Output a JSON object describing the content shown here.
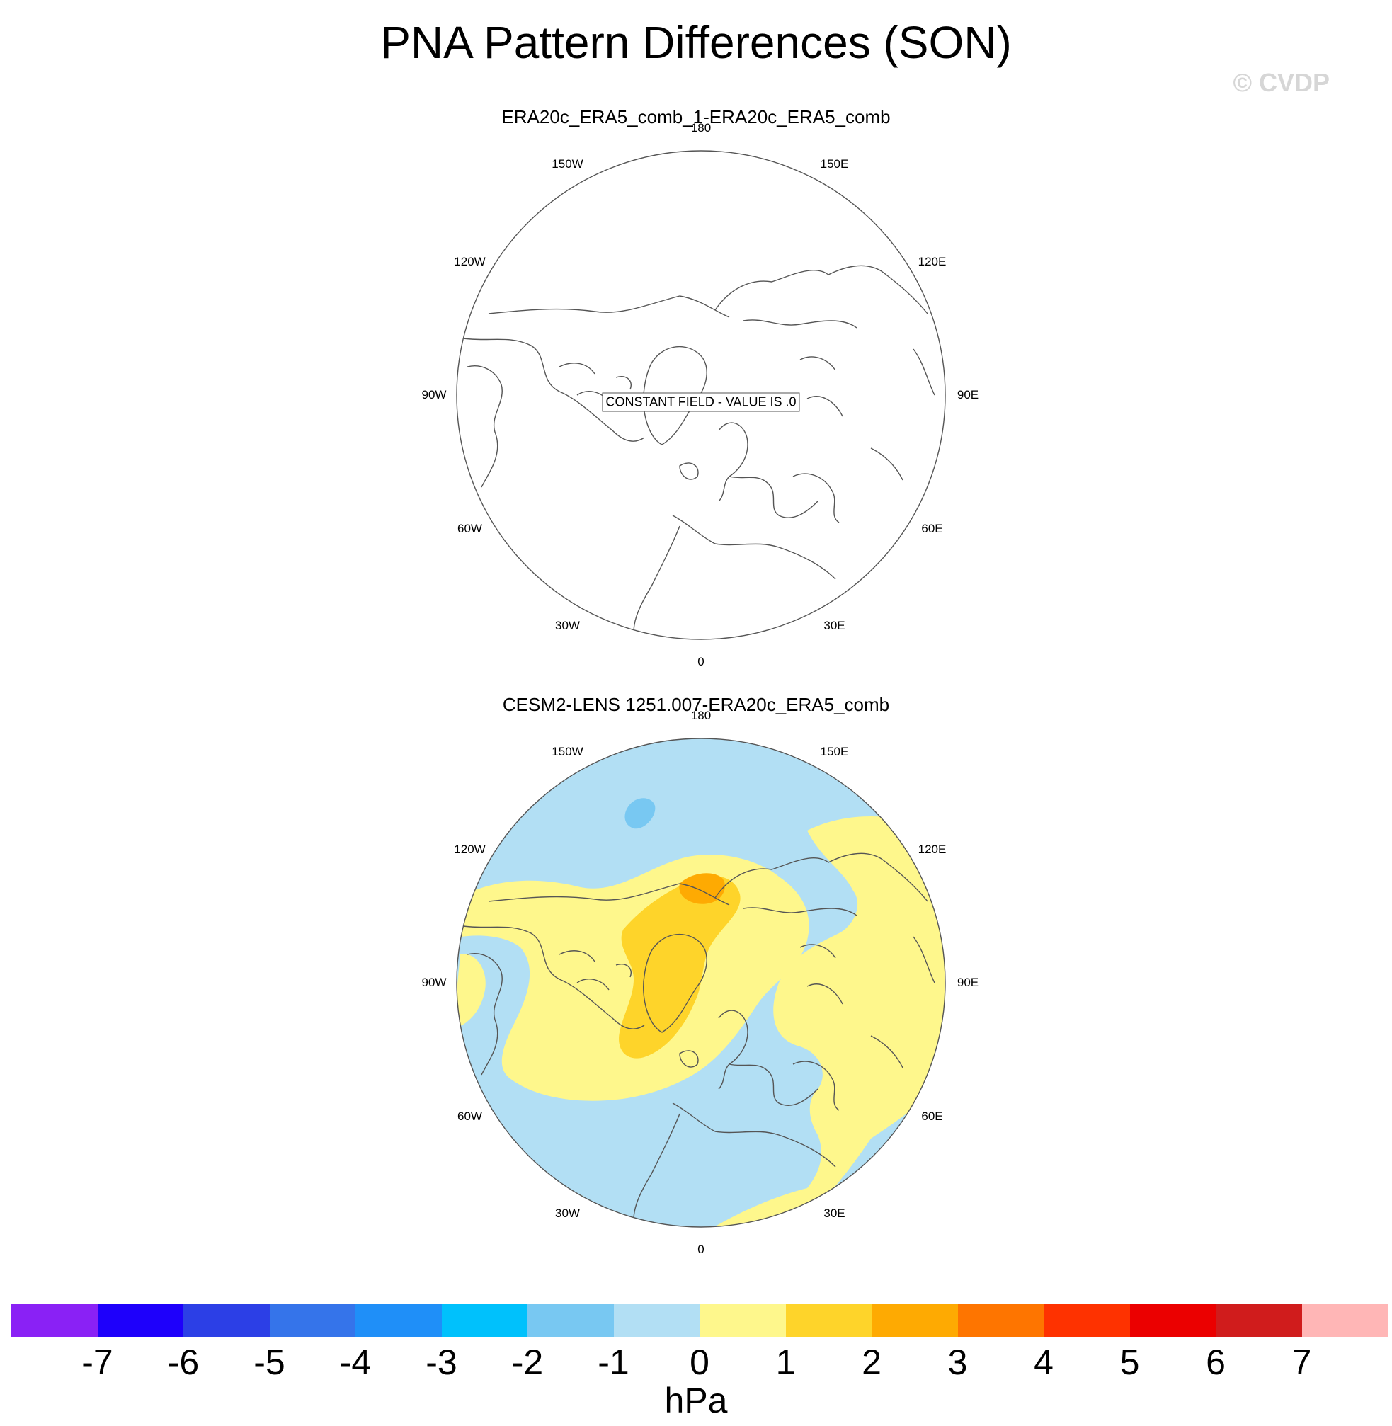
{
  "title": "PNA Pattern Differences (SON)",
  "watermark": "© CVDP",
  "longitude_labels": [
    "180",
    "150E",
    "120E",
    "90E",
    "60E",
    "30E",
    "0",
    "30W",
    "60W",
    "90W",
    "120W",
    "150W"
  ],
  "colors": {
    "coastline": "#555555",
    "map_border": "#555555",
    "neg_1_0": "#b2dff4",
    "neg_2_1": "#78c8f2",
    "pos_0_1": "#fef78c",
    "pos_1_2": "#fed42a",
    "pos_2_3": "#feaa02"
  },
  "chart_data": [
    {
      "type": "heatmap",
      "projection": "north polar stereographic",
      "title": "ERA20c_ERA5_comb_1-ERA20c_ERA5_comb",
      "annotation": "CONSTANT FIELD - VALUE IS .0",
      "constant_value": 0
    },
    {
      "type": "heatmap",
      "projection": "north polar stereographic",
      "title": "CESM2-LENS 1251.007-ERA20c_ERA5_comb",
      "regions": [
        {
          "range": [
            -1,
            0
          ],
          "where": "background / most of the hemisphere"
        },
        {
          "range": [
            -2,
            -1
          ],
          "where": "small patch near 150W, 45N"
        },
        {
          "range": [
            0,
            1
          ],
          "where": "broad Arctic / North America / Siberia / northern Africa bands"
        },
        {
          "range": [
            1,
            2
          ],
          "where": "Arctic Ocean to Greenland ridge"
        },
        {
          "range": [
            2,
            3
          ],
          "where": "small core near 160E, 75N"
        }
      ]
    }
  ],
  "colorbar": {
    "units": "hPa",
    "ticks": [
      "-7",
      "-6",
      "-5",
      "-4",
      "-3",
      "-2",
      "-1",
      "0",
      "1",
      "2",
      "3",
      "4",
      "5",
      "6",
      "7"
    ],
    "colors": [
      "#8a21f5",
      "#1e00fb",
      "#2c3fe6",
      "#3574ea",
      "#1f8ff8",
      "#00c1fc",
      "#78c8f2",
      "#b2dff4",
      "#fef78c",
      "#fed42a",
      "#feaa02",
      "#fe7500",
      "#fe3200",
      "#eb0000",
      "#d01c1c",
      "#ffb6b6"
    ]
  }
}
